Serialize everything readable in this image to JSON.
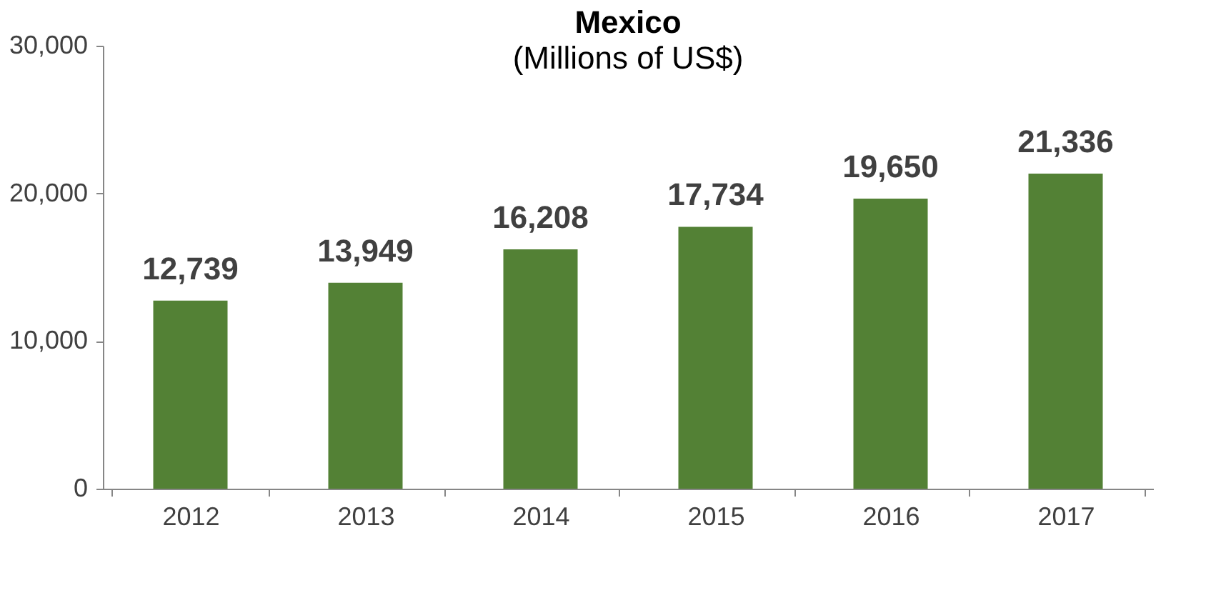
{
  "chart_data": {
    "type": "bar",
    "title": "Mexico",
    "subtitle": "(Millions of US$)",
    "categories": [
      "2012",
      "2013",
      "2014",
      "2015",
      "2016",
      "2017"
    ],
    "values": [
      12739,
      13949,
      16208,
      17734,
      19650,
      21336
    ],
    "value_labels": [
      "12,739",
      "13,949",
      "16,208",
      "17,734",
      "19,650",
      "21,336"
    ],
    "color": "#538135",
    "ylim": [
      0,
      30000
    ],
    "yticks": [
      0,
      {
        "value": 10000,
        "label": "10,000"
      },
      {
        "value": 20000,
        "label": "20,000"
      },
      {
        "value": 30000,
        "label": "30,000"
      }
    ],
    "grid": false
  }
}
